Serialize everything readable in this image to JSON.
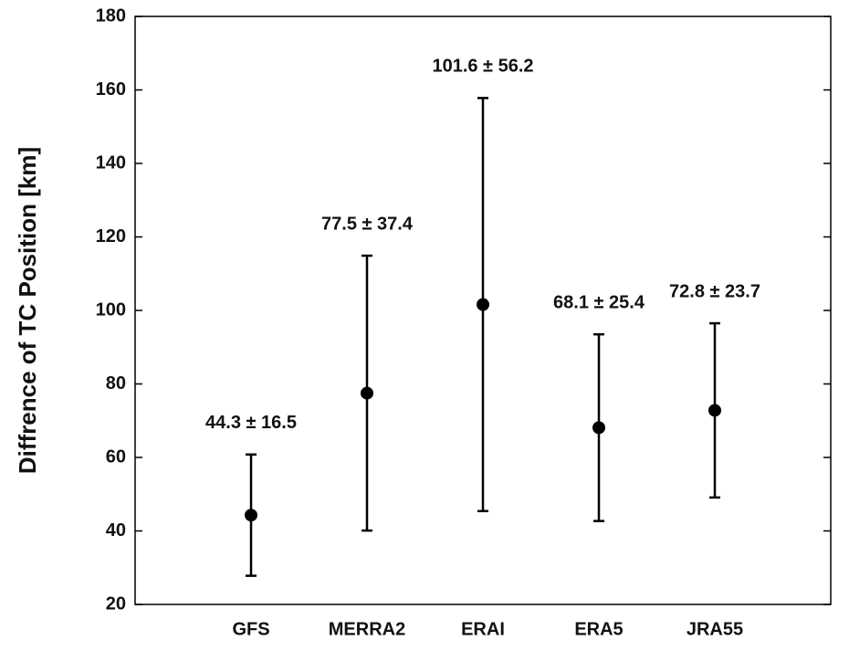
{
  "chart_data": {
    "type": "errorbar",
    "y_label": "Diffrence of TC Position [km]",
    "categories": [
      "GFS",
      "MERRA2",
      "ERAI",
      "ERA5",
      "JRA55"
    ],
    "values": [
      44.3,
      77.5,
      101.6,
      68.1,
      72.8
    ],
    "errors": [
      16.5,
      37.4,
      56.2,
      25.4,
      23.7
    ],
    "value_labels": [
      "44.3 ± 16.5",
      "77.5 ± 37.4",
      "101.6 ± 56.2",
      "68.1 ± 25.4",
      "72.8 ± 23.7"
    ],
    "color": "#000000",
    "ylim": [
      20,
      180
    ],
    "yticks": [
      20,
      40,
      60,
      80,
      100,
      120,
      140,
      160,
      180
    ],
    "grid": false
  }
}
